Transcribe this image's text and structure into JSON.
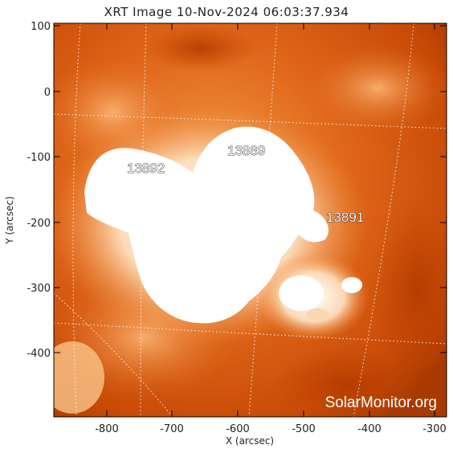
{
  "title": "XRT Image 10-Nov-2024 06:03:37.934",
  "axes": {
    "x_label": "X (arcsec)",
    "y_label": "Y (arcsec)",
    "x_ticks": [
      "-800",
      "-700",
      "-600",
      "-500",
      "-400",
      "-300"
    ],
    "y_ticks": [
      "100",
      "0",
      "-100",
      "-200",
      "-300",
      "-400"
    ]
  },
  "active_regions": [
    "13892",
    "13889",
    "13891"
  ],
  "credit": "SolarMonitor.org",
  "colors": {
    "background_deep": "#c24400",
    "background_mid": "#e0681a",
    "bright": "#ffffff",
    "glow": "#ffc890"
  }
}
